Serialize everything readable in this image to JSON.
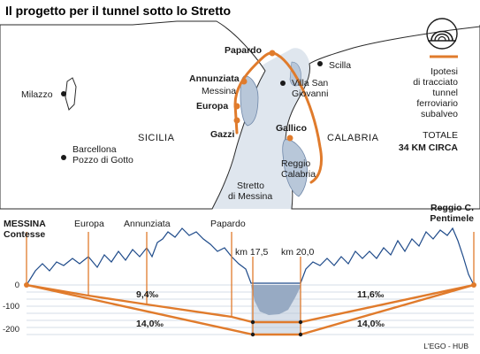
{
  "title": "Il progetto per il tunnel sotto lo Stretto",
  "map": {
    "places": {
      "pardardo": "Papardo",
      "scilla": "Scilla",
      "annunziata": "Annunziata",
      "messina": "Messina",
      "villa_sg_1": "Villa San",
      "villa_sg_2": "Giovanni",
      "milazzo": "Milazzo",
      "europa": "Europa",
      "gazzi": "Gazzi",
      "gallico": "Gallico",
      "sicilia": "SICILIA",
      "calabria": "CALABRIA",
      "barcellona_1": "Barcellona",
      "barcellona_2": "Pozzo di Gotto",
      "reggio_1": "Reggio",
      "reggio_2": "Calabria",
      "stretto_1": "Stretto",
      "stretto_2": "di Messina"
    },
    "legend": {
      "icon": "tunnel-icon",
      "lines": [
        "Ipotesi",
        "di tracciato",
        "tunnel",
        "ferroviario",
        "subalveo"
      ],
      "total_label": "TOTALE",
      "total_value": "34 KM CIRCA"
    }
  },
  "profile": {
    "stations": {
      "messina_1": "MESSINA",
      "messina_2": "Contesse",
      "europa": "Europa",
      "annunziata": "Annunziata",
      "papardo": "Papardo",
      "km175": "km 17,5",
      "km20": "km 20,0",
      "reggio_1": "Reggio C.",
      "reggio_2": "Pentimele"
    },
    "depth_ticks": [
      "0",
      "-100",
      "-200"
    ],
    "gradients": {
      "left_upper": "9,4‰",
      "left_lower": "14,0‰",
      "right_upper": "11,6‰",
      "right_lower": "14,0‰"
    },
    "credit": "L'EGO - HUB"
  },
  "colors": {
    "route": "#e07b2c",
    "sea": "#b8c7d9",
    "sea_dark": "#6f87a8",
    "land": "#ffffff",
    "coast": "#2a2a2a",
    "grid": "#c9d3df"
  }
}
